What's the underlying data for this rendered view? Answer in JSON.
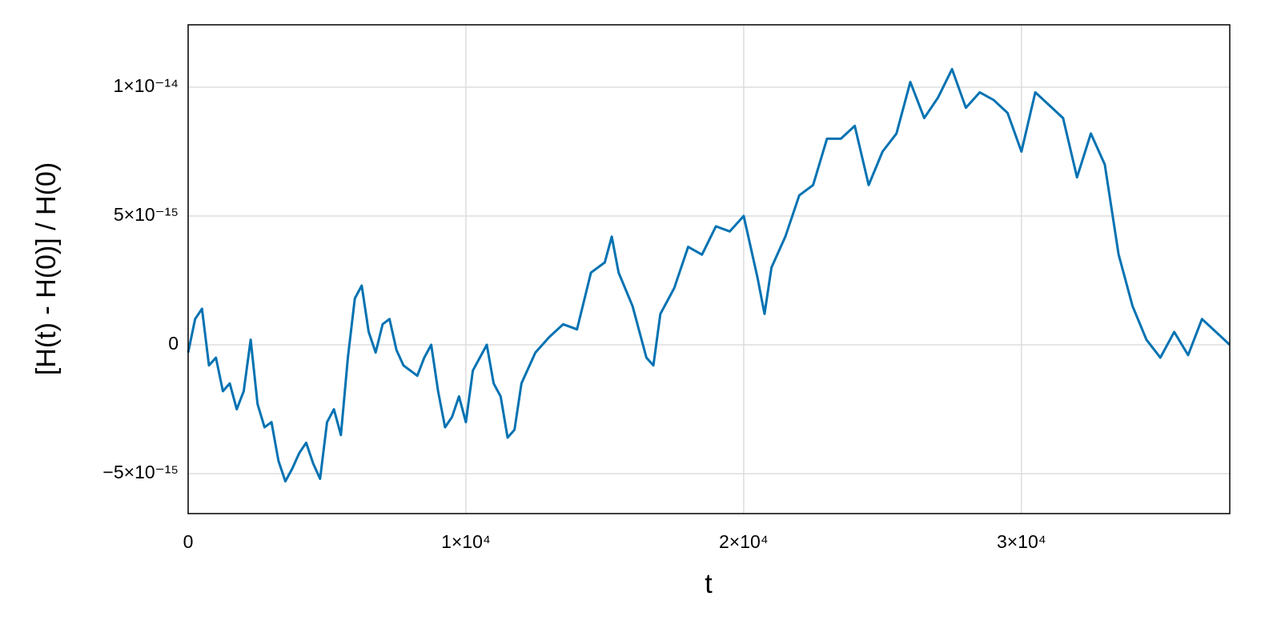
{
  "chart_data": {
    "type": "line",
    "xlabel": "t",
    "ylabel": "[H(t) - H(0)] / H(0)",
    "color": "#0072b2",
    "grid": true,
    "xlim": [
      0,
      37500
    ],
    "ylim": [
      -6.55e-15,
      1.242e-14
    ],
    "xticks": [
      0,
      {
        "value": 10000,
        "label": "1×10⁴"
      },
      {
        "value": 20000,
        "label": "2×10⁴"
      },
      {
        "value": 30000,
        "label": "3×10⁴"
      }
    ],
    "yticks": [
      {
        "value": -5e-15,
        "label": "−5×10⁻¹⁵"
      },
      0,
      {
        "value": 5e-15,
        "label": "5×10⁻¹⁵"
      },
      {
        "value": 1e-14,
        "label": "1×10⁻¹⁴"
      }
    ],
    "x": [
      0,
      250,
      500,
      750,
      1000,
      1250,
      1500,
      1750,
      2000,
      2250,
      2500,
      2750,
      3000,
      3250,
      3500,
      3750,
      4000,
      4250,
      4500,
      4750,
      5000,
      5250,
      5500,
      5750,
      6000,
      6250,
      6500,
      6750,
      7000,
      7250,
      7500,
      7750,
      8000,
      8250,
      8500,
      8750,
      9000,
      9250,
      9500,
      9750,
      10000,
      10250,
      10500,
      10750,
      11000,
      11250,
      11500,
      11750,
      12000,
      12500,
      13000,
      13500,
      14000,
      14500,
      15000,
      15250,
      15500,
      16000,
      16500,
      16750,
      17000,
      17500,
      18000,
      18500,
      19000,
      19500,
      20000,
      20500,
      20750,
      21000,
      21500,
      22000,
      22500,
      23000,
      23500,
      24000,
      24500,
      25000,
      25500,
      26000,
      26500,
      27000,
      27500,
      28000,
      28500,
      29000,
      29500,
      30000,
      30500,
      31000,
      31500,
      32000,
      32500,
      33000,
      33500,
      34000,
      34500,
      35000,
      35500,
      36000,
      36500,
      37000,
      37500
    ],
    "values": [
      -3e-16,
      1e-15,
      1.4e-15,
      -8e-16,
      -5e-16,
      -1.8e-15,
      -1.5e-15,
      -2.5e-15,
      -1.8e-15,
      2e-16,
      -2.3e-15,
      -3.2e-15,
      -3e-15,
      -4.5e-15,
      -5.3e-15,
      -4.8e-15,
      -4.2e-15,
      -3.8e-15,
      -4.6e-15,
      -5.2e-15,
      -3e-15,
      -2.5e-15,
      -3.5e-15,
      -5e-16,
      1.8e-15,
      2.3e-15,
      5e-16,
      -3e-16,
      8e-16,
      1e-15,
      -2e-16,
      -8e-16,
      -1e-15,
      -1.2e-15,
      -5e-16,
      0,
      -1.8e-15,
      -3.2e-15,
      -2.8e-15,
      -2e-15,
      -3e-15,
      -1e-15,
      -5e-16,
      0,
      -1.5e-15,
      -2e-15,
      -3.6e-15,
      -3.3e-15,
      -1.5e-15,
      -3e-16,
      3e-16,
      8e-16,
      6e-16,
      2.8e-15,
      3.2e-15,
      4.2e-15,
      2.8e-15,
      1.5e-15,
      -5e-16,
      -8e-16,
      1.2e-15,
      2.2e-15,
      3.8e-15,
      3.5e-15,
      4.6e-15,
      4.4e-15,
      5e-15,
      2.6e-15,
      1.2e-15,
      3e-15,
      4.2e-15,
      5.8e-15,
      6.2e-15,
      8e-15,
      8e-15,
      8.5e-15,
      6.2e-15,
      7.5e-15,
      8.2e-15,
      1.02e-14,
      8.8e-15,
      9.6e-15,
      1.07e-14,
      9.2e-15,
      9.8e-15,
      9.5e-15,
      9e-15,
      7.5e-15,
      9.8e-15,
      9.3e-15,
      8.8e-15,
      6.5e-15,
      8.2e-15,
      7e-15,
      3.5e-15,
      1.5e-15,
      2e-16,
      -5e-16,
      5e-16,
      -4e-16,
      1e-15,
      5e-16,
      0
    ]
  }
}
